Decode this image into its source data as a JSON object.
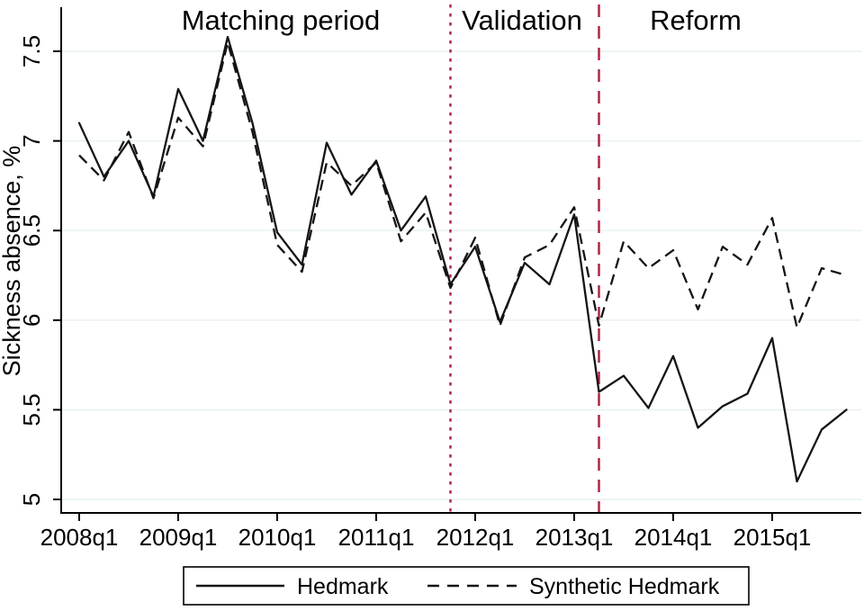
{
  "figure": {
    "background": "#ffffff"
  },
  "chart_data": {
    "type": "line",
    "title": "",
    "xlabel": "",
    "ylabel": "Sickness absence, %",
    "x_unit": "quarter",
    "categories": [
      "2008q1",
      "2008q2",
      "2008q3",
      "2008q4",
      "2009q1",
      "2009q2",
      "2009q3",
      "2009q4",
      "2010q1",
      "2010q2",
      "2010q3",
      "2010q4",
      "2011q1",
      "2011q2",
      "2011q3",
      "2011q4",
      "2012q1",
      "2012q2",
      "2012q3",
      "2012q4",
      "2013q1",
      "2013q2",
      "2013q3",
      "2013q4",
      "2014q1",
      "2014q2",
      "2014q3",
      "2014q4",
      "2015q1",
      "2015q2",
      "2015q3",
      "2015q4"
    ],
    "series": [
      {
        "name": "Hedmark",
        "line_style": "solid",
        "values": [
          7.1,
          6.8,
          7.0,
          6.69,
          7.29,
          7.0,
          7.58,
          7.1,
          6.49,
          6.31,
          6.99,
          6.7,
          6.89,
          6.5,
          6.69,
          6.2,
          6.41,
          5.99,
          6.32,
          6.2,
          6.59,
          5.6,
          5.69,
          5.51,
          5.8,
          5.4,
          5.52,
          5.59,
          5.9,
          5.1,
          5.39,
          5.5
        ]
      },
      {
        "name": "Synthetic Hedmark",
        "line_style": "dashed",
        "values": [
          6.92,
          6.78,
          7.05,
          6.68,
          7.13,
          6.97,
          7.55,
          7.05,
          6.42,
          6.27,
          6.88,
          6.75,
          6.88,
          6.44,
          6.6,
          6.18,
          6.46,
          5.97,
          6.35,
          6.42,
          6.63,
          5.97,
          6.44,
          6.29,
          6.39,
          6.06,
          6.41,
          6.31,
          6.57,
          5.96,
          6.29,
          6.25
        ]
      }
    ],
    "x_ticks": [
      {
        "index": 0,
        "label": "2008q1"
      },
      {
        "index": 4,
        "label": "2009q1"
      },
      {
        "index": 8,
        "label": "2010q1"
      },
      {
        "index": 12,
        "label": "2011q1"
      },
      {
        "index": 16,
        "label": "2012q1"
      },
      {
        "index": 20,
        "label": "2013q1"
      },
      {
        "index": 24,
        "label": "2014q1"
      },
      {
        "index": 28,
        "label": "2015q1"
      }
    ],
    "y_ticks": [
      {
        "value": 7.5,
        "label": "7.5"
      },
      {
        "value": 7.0,
        "label": "7"
      },
      {
        "value": 6.5,
        "label": "6.5"
      },
      {
        "value": 6.0,
        "label": "6"
      },
      {
        "value": 5.5,
        "label": "5.5"
      },
      {
        "value": 5.0,
        "label": "5"
      }
    ],
    "ylim": [
      5,
      7.75
    ],
    "grid": "horizontal",
    "vlines": [
      {
        "name": "validation-start",
        "x_index": 15,
        "style": "dotted"
      },
      {
        "name": "reform-start",
        "x_index": 21,
        "style": "dashed"
      }
    ],
    "region_titles": [
      {
        "label": "Matching period"
      },
      {
        "label": "Validation"
      },
      {
        "label": "Reform"
      }
    ],
    "legend": {
      "position": "bottom",
      "entries": [
        {
          "label": "Hedmark",
          "line_style": "solid"
        },
        {
          "label": "Synthetic Hedmark",
          "line_style": "dashed"
        }
      ]
    },
    "colors": {
      "series_line": "#141414",
      "vline": "#ab2040",
      "grid": "#e7f0f1",
      "axis": "#000000"
    }
  }
}
